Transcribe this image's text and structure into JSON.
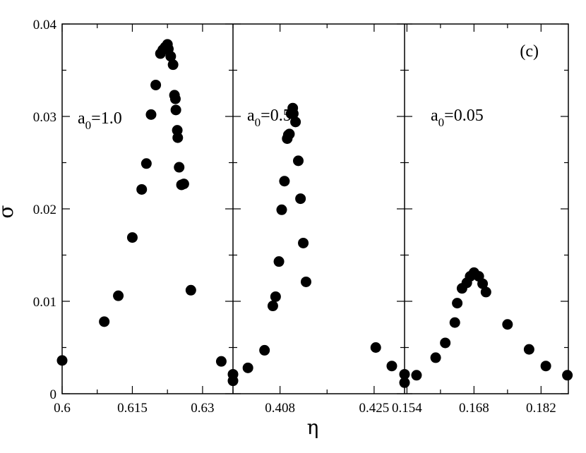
{
  "chart_data": {
    "type": "scatter",
    "ylabel": "σ",
    "xlabel": "η",
    "ylim": [
      0,
      0.04
    ],
    "yticks": [
      0,
      0.01,
      0.02,
      0.03,
      0.04
    ],
    "ytick_labels": [
      "0",
      "0.01",
      "0.02",
      "0.03",
      "0.04"
    ],
    "corner_label": "(c)",
    "grid": false,
    "panels": [
      {
        "label_main": "a",
        "label_sub": "0",
        "label_value": "=1.0",
        "xlim": [
          0.6,
          0.6365
        ],
        "xticks": [
          0.6,
          0.615,
          0.63
        ],
        "xtick_labels": [
          "0.6",
          "0.615",
          "0.63"
        ],
        "points": [
          [
            0.6,
            0.0036
          ],
          [
            0.609,
            0.0078
          ],
          [
            0.612,
            0.0106
          ],
          [
            0.615,
            0.0169
          ],
          [
            0.617,
            0.0221
          ],
          [
            0.618,
            0.0249
          ],
          [
            0.619,
            0.0302
          ],
          [
            0.62,
            0.0334
          ],
          [
            0.621,
            0.0368
          ],
          [
            0.6215,
            0.0372
          ],
          [
            0.622,
            0.0375
          ],
          [
            0.6225,
            0.0378
          ],
          [
            0.6227,
            0.0373
          ],
          [
            0.6232,
            0.0365
          ],
          [
            0.6237,
            0.0356
          ],
          [
            0.624,
            0.0323
          ],
          [
            0.6242,
            0.0319
          ],
          [
            0.6243,
            0.0307
          ],
          [
            0.6246,
            0.0285
          ],
          [
            0.6247,
            0.0277
          ],
          [
            0.625,
            0.0245
          ],
          [
            0.6255,
            0.0226
          ],
          [
            0.626,
            0.0227
          ],
          [
            0.6275,
            0.0112
          ],
          [
            0.634,
            0.0035
          ]
        ]
      },
      {
        "label_main": "a",
        "label_sub": "0",
        "label_value": "=0.5",
        "xlim": [
          0.3995,
          0.4305
        ],
        "xticks": [
          0.408,
          0.425
        ],
        "xtick_labels": [
          "0.408",
          "0.425"
        ],
        "points": [
          [
            0.3995,
            0.0021
          ],
          [
            0.3995,
            0.0014
          ],
          [
            0.4022,
            0.0028
          ],
          [
            0.4052,
            0.0047
          ],
          [
            0.4067,
            0.0095
          ],
          [
            0.4072,
            0.0105
          ],
          [
            0.4078,
            0.0143
          ],
          [
            0.4083,
            0.0199
          ],
          [
            0.4088,
            0.023
          ],
          [
            0.4093,
            0.0276
          ],
          [
            0.4095,
            0.028
          ],
          [
            0.4097,
            0.0281
          ],
          [
            0.41,
            0.0303
          ],
          [
            0.4103,
            0.0309
          ],
          [
            0.4104,
            0.0303
          ],
          [
            0.4108,
            0.0294
          ],
          [
            0.4113,
            0.0252
          ],
          [
            0.4117,
            0.0211
          ],
          [
            0.4122,
            0.0163
          ],
          [
            0.4127,
            0.0121
          ],
          [
            0.4253,
            0.005
          ],
          [
            0.4282,
            0.003
          ]
        ]
      },
      {
        "label_main": "a",
        "label_sub": "0",
        "label_value": "=0.05",
        "xlim": [
          0.1535,
          0.1877
        ],
        "xticks": [
          0.154,
          0.168,
          0.182
        ],
        "xtick_labels": [
          "0.154",
          "0.168",
          "0.182"
        ],
        "points": [
          [
            0.1535,
            0.0021
          ],
          [
            0.1535,
            0.0012
          ],
          [
            0.156,
            0.002
          ],
          [
            0.16,
            0.0039
          ],
          [
            0.162,
            0.0055
          ],
          [
            0.164,
            0.0077
          ],
          [
            0.1645,
            0.0098
          ],
          [
            0.1655,
            0.0114
          ],
          [
            0.1665,
            0.012
          ],
          [
            0.1672,
            0.0127
          ],
          [
            0.168,
            0.0131
          ],
          [
            0.169,
            0.0127
          ],
          [
            0.1698,
            0.0119
          ],
          [
            0.1705,
            0.011
          ],
          [
            0.175,
            0.0075
          ],
          [
            0.1795,
            0.0048
          ],
          [
            0.183,
            0.003
          ],
          [
            0.1875,
            0.002
          ]
        ]
      }
    ]
  }
}
